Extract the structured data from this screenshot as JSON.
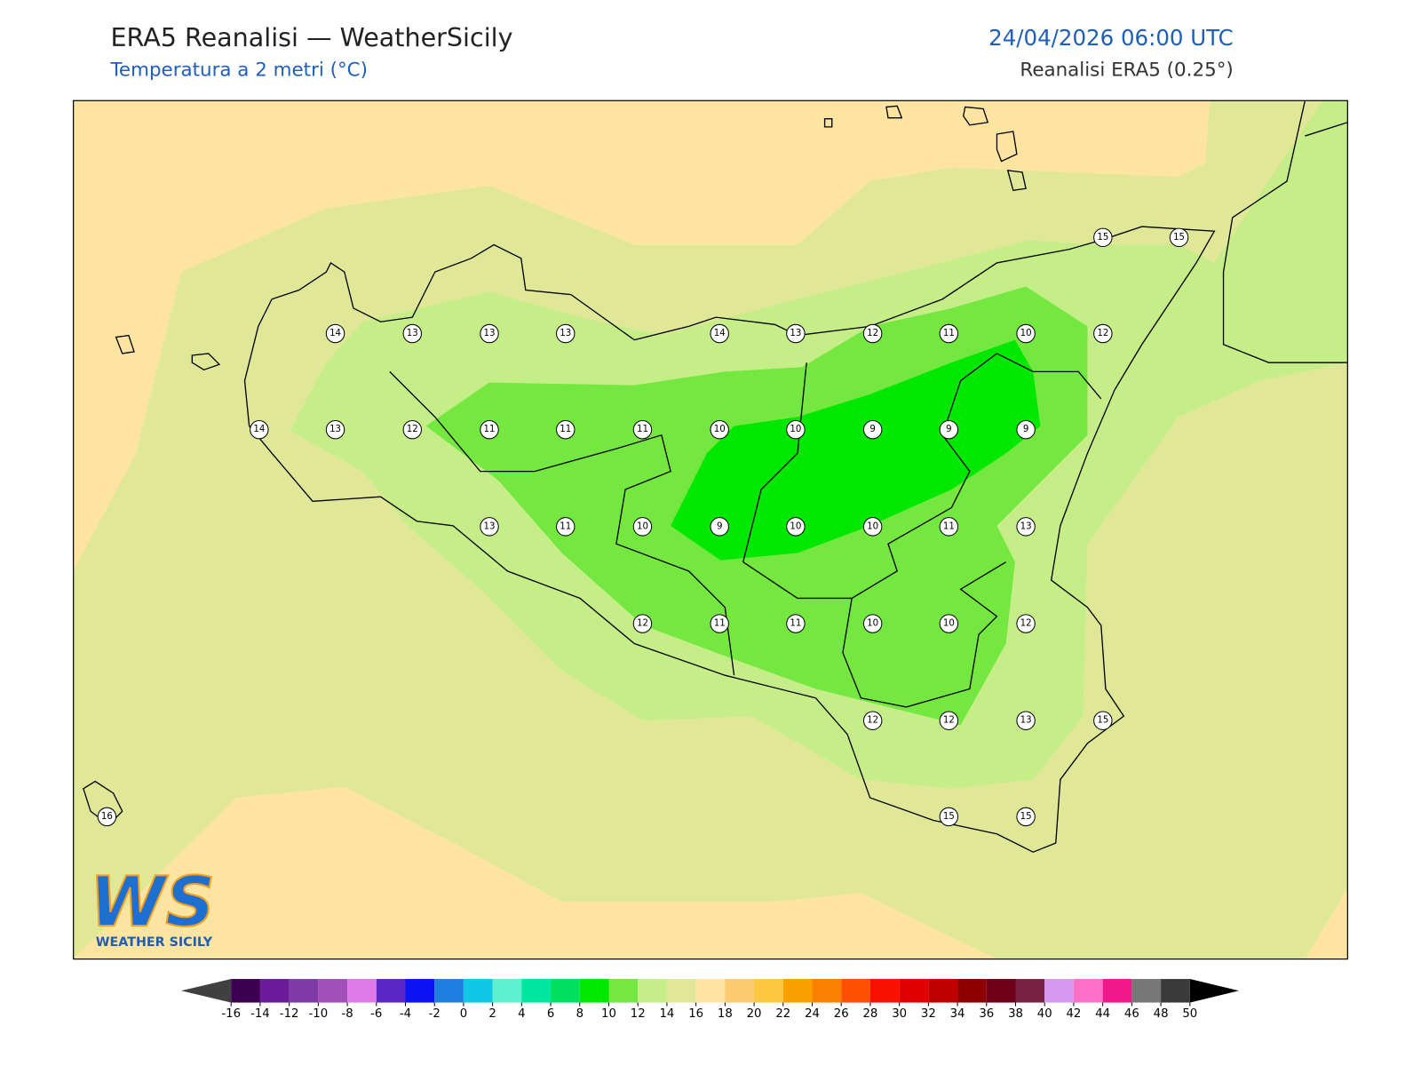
{
  "header": {
    "title": "ERA5 Reanalisi — WeatherSicily",
    "subtitle": "Temperatura a 2 metri (°C)",
    "datetime": "24/04/2026 06:00 UTC",
    "source": "Reanalisi ERA5 (0.25°)"
  },
  "map": {
    "stations": [
      14,
      13,
      13,
      13,
      14,
      13,
      12,
      11,
      10,
      12,
      15,
      15,
      14,
      13,
      12,
      11,
      11,
      11,
      10,
      10,
      9,
      9,
      9,
      13,
      11,
      10,
      9,
      10,
      10,
      11,
      13,
      12,
      11,
      11,
      10,
      10,
      12,
      12,
      12,
      13,
      15,
      16,
      15,
      15
    ]
  },
  "logo": {
    "mark": "WS",
    "text": "WEATHER SICILY"
  },
  "colorbar": {
    "ticks": [
      -16,
      -14,
      -12,
      -10,
      -8,
      -6,
      -4,
      -2,
      0,
      2,
      4,
      6,
      8,
      10,
      12,
      14,
      16,
      18,
      20,
      22,
      24,
      26,
      28,
      30,
      32,
      34,
      36,
      38,
      40,
      42,
      44,
      46,
      48,
      50
    ],
    "colors": [
      "#3c0050",
      "#6b1a9a",
      "#7f3aa8",
      "#a14fb9",
      "#e07ae8",
      "#5b25c8",
      "#0a14f5",
      "#1e7fe0",
      "#12c6e6",
      "#5cf0d0",
      "#00e6a0",
      "#00e060",
      "#00e800",
      "#74e840",
      "#c6ee88",
      "#e0e898",
      "#fde4a0",
      "#fccb70",
      "#fcc840",
      "#fca000",
      "#fc8000",
      "#fc5000",
      "#fc1000",
      "#e00000",
      "#c00000",
      "#900000",
      "#70001a",
      "#7a2040",
      "#d898f0",
      "#fc70c8",
      "#f01888",
      "#787878",
      "#3a3a3a"
    ],
    "under_color": "#404040",
    "over_color": "#000000"
  }
}
